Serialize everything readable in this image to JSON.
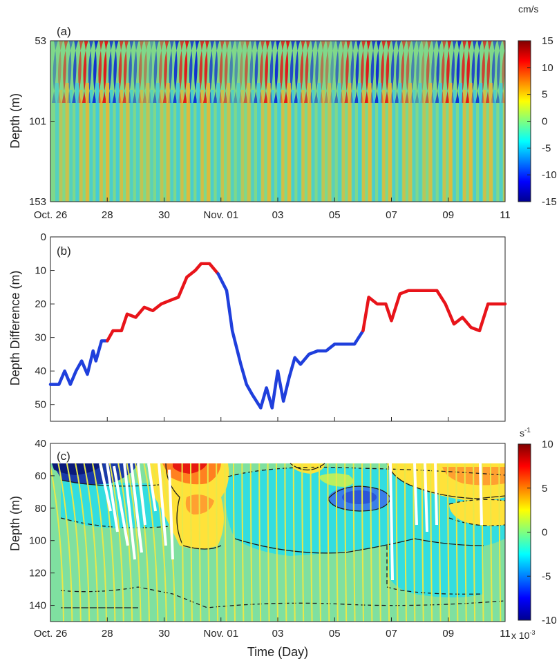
{
  "chart_data": [
    {
      "panel": "(a)",
      "type": "heatmap",
      "xlabel": "",
      "ylabel": "Depth (m)",
      "x_ticks": [
        "Oct. 26",
        "28",
        "30",
        "Nov. 01",
        "03",
        "05",
        "07",
        "09",
        "11"
      ],
      "x_range_days": [
        26,
        42
      ],
      "y_ticks": [
        "53",
        "101",
        "153"
      ],
      "ylim": [
        53,
        153
      ],
      "colorbar": {
        "unit": "cm/s",
        "ticks": [
          "15",
          "10",
          "5",
          "0",
          "-5",
          "-10",
          "-15"
        ],
        "range": [
          -15,
          15
        ]
      },
      "description_pattern": "alternating bands of positive and negative velocity, ~0.5 day period, strongest near 53 m"
    },
    {
      "panel": "(b)",
      "type": "line",
      "xlabel": "",
      "ylabel": "Depth Difference (m)",
      "x_ticks": [
        "Oct. 26",
        "28",
        "30",
        "Nov. 01",
        "03",
        "05",
        "07",
        "09",
        "11"
      ],
      "y_ticks": [
        "0",
        "10",
        "20",
        "30",
        "40",
        "50"
      ],
      "ylim": [
        0,
        55
      ],
      "y_reversed": true,
      "series": [
        {
          "color": "#1f3fdc",
          "x": [
            26.0,
            26.3,
            26.5,
            26.7,
            26.9,
            27.1,
            27.3,
            27.5,
            27.6,
            27.8,
            28.0
          ],
          "y": [
            44,
            44,
            40,
            44,
            40,
            37,
            41,
            34,
            37,
            31,
            31
          ]
        },
        {
          "color": "#e8141a",
          "x": [
            28.0,
            28.2,
            28.5,
            28.7,
            29.0,
            29.3,
            29.6,
            29.9,
            30.2,
            30.5,
            30.8,
            31.1,
            31.3,
            31.6,
            31.9
          ],
          "y": [
            31,
            28,
            28,
            23,
            24,
            21,
            22,
            20,
            19,
            18,
            12,
            10,
            8,
            8,
            11
          ]
        },
        {
          "color": "#1f3fdc",
          "x": [
            31.9,
            32.2,
            32.4,
            32.7,
            32.9,
            33.1,
            33.4,
            33.6,
            33.8,
            34.0,
            34.2,
            34.4,
            34.6,
            34.8,
            35.1,
            35.4,
            35.7,
            36.0,
            36.4,
            36.7,
            37.0
          ],
          "y": [
            11,
            16,
            28,
            38,
            44,
            47,
            51,
            45,
            51,
            40,
            49,
            42,
            36,
            38,
            35,
            34,
            34,
            32,
            32,
            32,
            28
          ]
        },
        {
          "color": "#e8141a",
          "x": [
            37.0,
            37.2,
            37.5,
            37.8,
            38.0,
            38.3,
            38.6,
            39.0,
            39.3,
            39.6,
            39.9,
            40.2,
            40.5,
            40.8,
            41.1,
            41.4,
            41.7,
            42.0
          ],
          "y": [
            28,
            18,
            20,
            20,
            25,
            17,
            16,
            16,
            16,
            16,
            20,
            26,
            24,
            27,
            28,
            20,
            20,
            20
          ]
        }
      ]
    },
    {
      "panel": "(c)",
      "type": "heatmap",
      "xlabel": "Time (Day)",
      "ylabel": "Depth (m)",
      "x_ticks": [
        "Oct. 26",
        "28",
        "30",
        "Nov. 01",
        "03",
        "05",
        "07",
        "09",
        "11"
      ],
      "y_ticks": [
        "40",
        "60",
        "80",
        "100",
        "120",
        "140"
      ],
      "ylim": [
        40,
        150
      ],
      "colorbar": {
        "unit": "s⁻¹",
        "ticks": [
          "10",
          "5",
          "0",
          "-5",
          "-10"
        ],
        "range": [
          -10,
          10
        ],
        "scale": "x 10⁻³"
      },
      "overlays": [
        "contour lines (solid/dashed)",
        "yellow vertical ray traces",
        "white vertical traces"
      ]
    }
  ],
  "labels": {
    "panel_a": "(a)",
    "panel_b": "(b)",
    "panel_c": "(c)",
    "ylabel_a": "Depth (m)",
    "ylabel_b": "Depth Difference (m)",
    "ylabel_c": "Depth (m)",
    "xlabel": "Time (Day)",
    "cb_a_unit": "cm/s",
    "cb_c_unit": "s",
    "cb_c_exp": "-1",
    "cb_c_scale": "x 10",
    "cb_c_scale_exp": "-3"
  },
  "colors": {
    "blue_series": "#1f3fdc",
    "red_series": "#e8141a",
    "ray_yellow": "#e8e84a",
    "trace_white": "#ffffff"
  }
}
